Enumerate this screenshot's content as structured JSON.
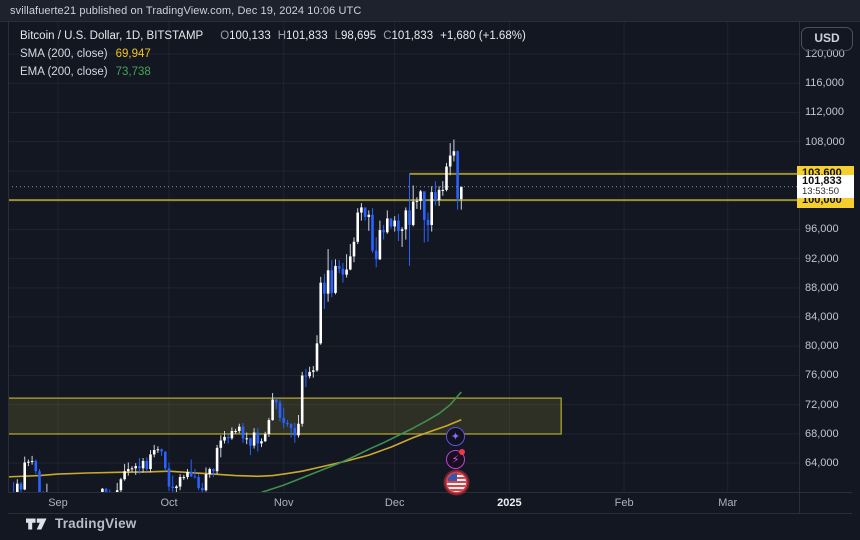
{
  "attribution": {
    "text": "svillafuerte21 published on TradingView.com, Dec 19, 2024 10:06 UTC"
  },
  "legend": {
    "symbol": "Bitcoin / U.S. Dollar, 1D, BITSTAMP",
    "open_label": "O",
    "open": "100,133",
    "high_label": "H",
    "high": "101,833",
    "low_label": "L",
    "low": "98,695",
    "close_label": "C",
    "close": "101,833",
    "change": "+1,680 (+1.68%)",
    "sma_label": "SMA (200, close)",
    "sma_value": "69,947",
    "ema_label": "EMA (200, close)",
    "ema_value": "73,738"
  },
  "price_axis": {
    "currency_button": "USD",
    "level_upper": "103,600",
    "last_price": "101,833",
    "countdown": "13:53:50",
    "level_lower": "100,000"
  },
  "footer": {
    "brand": "TradingView"
  },
  "event_icons": [
    {
      "name": "sparkle-event",
      "glyph": "✦"
    },
    {
      "name": "lightning-event",
      "glyph": "⚡",
      "badge": true
    },
    {
      "name": "us-flag-event"
    }
  ],
  "colors": {
    "background": "#131722",
    "up_candle": "#ffffff",
    "down_candle": "#2962ff",
    "sma_line": "#c9a92c",
    "ema_line": "#3f8f4f",
    "drawing_yellow": "#9a932d",
    "label_yellow_bg": "#f5cf2f",
    "last_price_line": "#8b8f99"
  },
  "chart_data": {
    "type": "candlestick",
    "title": "Bitcoin / U.S. Dollar, 1D, BITSTAMP",
    "price_unit": "USD (values stored in thousands)",
    "x_unit": "days since Sep 1, 2024",
    "start_day": -15,
    "grid": true,
    "ylim_visible": [
      60000,
      124380
    ],
    "y_ticks": [
      120,
      116,
      112,
      108,
      104,
      100,
      96,
      92,
      88,
      84,
      80,
      76,
      72,
      68,
      64
    ],
    "x_ticks": [
      {
        "label": "Sep",
        "d": 0
      },
      {
        "label": "Oct",
        "d": 30
      },
      {
        "label": "Nov",
        "d": 61
      },
      {
        "label": "Dec",
        "d": 91
      },
      {
        "label": "2025",
        "d": 122,
        "emph": true
      },
      {
        "label": "Feb",
        "d": 153
      },
      {
        "label": "Mar",
        "d": 181
      }
    ],
    "candles": [
      [
        60.3,
        60.7,
        58.4,
        59.5
      ],
      [
        59.5,
        60.3,
        58.1,
        58.5
      ],
      [
        58.5,
        59.6,
        57.9,
        59.5
      ],
      [
        59.5,
        61.4,
        58.6,
        59.0
      ],
      [
        59.0,
        61.8,
        58.8,
        61.2
      ],
      [
        61.2,
        61.4,
        59.8,
        60.4
      ],
      [
        60.4,
        64.9,
        60.3,
        64.1
      ],
      [
        64.1,
        64.5,
        63.6,
        64.2
      ],
      [
        64.2,
        65.0,
        63.8,
        64.3
      ],
      [
        64.3,
        64.5,
        62.5,
        62.9
      ],
      [
        62.9,
        63.2,
        58.9,
        59.5
      ],
      [
        59.5,
        60.2,
        57.9,
        59.0
      ],
      [
        59.0,
        61.2,
        58.7,
        59.4
      ],
      [
        59.4,
        59.9,
        57.7,
        59.1
      ],
      [
        59.1,
        59.5,
        58.6,
        58.9
      ],
      [
        58.9,
        59.1,
        57.1,
        57.3
      ],
      [
        57.3,
        59.4,
        57.2,
        59.1
      ],
      [
        59.1,
        59.8,
        57.4,
        57.5
      ],
      [
        57.5,
        58.5,
        55.6,
        58.0
      ],
      [
        58.0,
        58.3,
        55.9,
        56.2
      ],
      [
        56.2,
        57.0,
        52.5,
        53.9
      ],
      [
        53.9,
        54.8,
        53.7,
        54.2
      ],
      [
        54.2,
        55.3,
        53.6,
        54.9
      ],
      [
        54.9,
        58.0,
        54.6,
        57.0
      ],
      [
        57.0,
        58.0,
        56.4,
        57.6
      ],
      [
        57.6,
        58.0,
        55.5,
        57.3
      ],
      [
        57.3,
        58.5,
        57.0,
        58.1
      ],
      [
        58.1,
        60.6,
        57.6,
        60.5
      ],
      [
        60.5,
        60.6,
        59.4,
        60.0
      ],
      [
        60.0,
        60.4,
        58.7,
        59.2
      ],
      [
        59.2,
        59.6,
        57.5,
        58.2
      ],
      [
        58.2,
        61.3,
        57.6,
        60.3
      ],
      [
        60.3,
        62.0,
        59.2,
        61.8
      ],
      [
        61.8,
        63.9,
        61.6,
        62.9
      ],
      [
        62.9,
        64.1,
        62.3,
        63.2
      ],
      [
        63.2,
        63.6,
        62.8,
        63.3
      ],
      [
        63.3,
        64.0,
        62.4,
        63.6
      ],
      [
        63.6,
        64.7,
        62.5,
        63.3
      ],
      [
        63.3,
        64.7,
        62.7,
        64.3
      ],
      [
        64.3,
        64.8,
        62.9,
        63.2
      ],
      [
        63.2,
        65.8,
        62.7,
        65.2
      ],
      [
        65.2,
        66.5,
        64.8,
        65.8
      ],
      [
        65.8,
        66.3,
        65.4,
        65.9
      ],
      [
        65.9,
        66.0,
        65.0,
        65.6
      ],
      [
        65.6,
        65.6,
        62.9,
        63.3
      ],
      [
        63.3,
        64.1,
        60.2,
        60.8
      ],
      [
        60.8,
        62.3,
        60.0,
        60.6
      ],
      [
        60.6,
        61.0,
        59.8,
        60.8
      ],
      [
        60.8,
        62.5,
        60.3,
        62.1
      ],
      [
        62.1,
        62.4,
        61.7,
        62.1
      ],
      [
        62.1,
        63.2,
        61.8,
        62.8
      ],
      [
        62.8,
        64.5,
        62.1,
        62.2
      ],
      [
        62.2,
        63.2,
        61.9,
        62.1
      ],
      [
        62.1,
        62.5,
        60.3,
        60.6
      ],
      [
        60.6,
        61.3,
        58.9,
        60.3
      ],
      [
        60.3,
        63.4,
        60.1,
        62.5
      ],
      [
        62.5,
        63.4,
        62.0,
        63.2
      ],
      [
        63.2,
        63.3,
        62.1,
        62.9
      ],
      [
        62.9,
        66.5,
        62.5,
        66.1
      ],
      [
        66.1,
        67.8,
        64.8,
        67.1
      ],
      [
        67.1,
        68.4,
        66.7,
        67.6
      ],
      [
        67.6,
        67.9,
        66.7,
        67.4
      ],
      [
        67.4,
        68.9,
        67.2,
        68.4
      ],
      [
        68.4,
        68.7,
        68.0,
        68.4
      ],
      [
        68.4,
        69.4,
        68.1,
        69.0
      ],
      [
        69.0,
        69.5,
        66.8,
        67.4
      ],
      [
        67.4,
        68.2,
        66.6,
        67.4
      ],
      [
        67.4,
        67.5,
        65.1,
        66.4
      ],
      [
        66.4,
        68.8,
        66.0,
        68.2
      ],
      [
        68.2,
        68.8,
        65.6,
        66.7
      ],
      [
        66.7,
        67.4,
        66.2,
        67.0
      ],
      [
        67.0,
        68.3,
        66.9,
        68.0
      ],
      [
        68.0,
        70.2,
        67.6,
        69.9
      ],
      [
        69.9,
        73.6,
        69.8,
        72.7
      ],
      [
        72.7,
        72.9,
        71.4,
        72.3
      ],
      [
        72.3,
        72.7,
        69.7,
        70.2
      ],
      [
        70.2,
        71.6,
        68.8,
        69.5
      ],
      [
        69.5,
        69.9,
        69.0,
        69.4
      ],
      [
        69.4,
        69.4,
        67.5,
        68.8
      ],
      [
        68.8,
        69.5,
        66.8,
        67.8
      ],
      [
        67.8,
        70.6,
        67.5,
        69.4
      ],
      [
        69.4,
        76.5,
        69.0,
        76.0
      ],
      [
        76.0,
        76.9,
        74.4,
        75.9
      ],
      [
        75.9,
        77.2,
        75.6,
        76.5
      ],
      [
        76.5,
        77.3,
        75.7,
        76.7
      ],
      [
        76.7,
        81.5,
        76.5,
        80.4
      ],
      [
        80.4,
        89.5,
        80.2,
        88.7
      ],
      [
        88.7,
        89.9,
        85.1,
        87.2
      ],
      [
        87.2,
        93.3,
        86.1,
        90.4
      ],
      [
        90.4,
        91.8,
        86.7,
        87.3
      ],
      [
        87.3,
        91.9,
        87.1,
        91.0
      ],
      [
        91.0,
        91.8,
        90.0,
        90.6
      ],
      [
        90.6,
        91.4,
        88.7,
        89.8
      ],
      [
        89.8,
        92.6,
        89.4,
        90.5
      ],
      [
        90.5,
        94.0,
        90.4,
        92.3
      ],
      [
        92.3,
        94.9,
        91.5,
        94.3
      ],
      [
        94.3,
        98.9,
        94.0,
        98.3
      ],
      [
        98.3,
        99.6,
        97.2,
        99.0
      ],
      [
        99.0,
        99.0,
        97.2,
        97.7
      ],
      [
        97.7,
        98.6,
        95.8,
        98.0
      ],
      [
        98.0,
        98.9,
        92.8,
        93.1
      ],
      [
        93.1,
        94.9,
        90.8,
        91.9
      ],
      [
        91.9,
        97.2,
        91.8,
        95.9
      ],
      [
        95.9,
        96.6,
        94.6,
        95.6
      ],
      [
        95.6,
        98.6,
        95.4,
        97.5
      ],
      [
        97.5,
        97.5,
        96.1,
        96.4
      ],
      [
        96.4,
        97.8,
        95.7,
        97.2
      ],
      [
        97.2,
        98.1,
        94.4,
        95.8
      ],
      [
        95.8,
        96.3,
        93.6,
        96.0
      ],
      [
        96.0,
        99.0,
        94.6,
        98.6
      ],
      [
        98.6,
        103.6,
        91.0,
        96.6
      ],
      [
        96.6,
        102.0,
        96.4,
        99.8
      ],
      [
        99.8,
        100.4,
        98.8,
        99.9
      ],
      [
        99.9,
        101.4,
        98.7,
        101.2
      ],
      [
        101.2,
        101.2,
        94.2,
        97.3
      ],
      [
        97.3,
        98.3,
        94.3,
        96.6
      ],
      [
        96.6,
        101.9,
        95.7,
        101.1
      ],
      [
        101.1,
        102.6,
        99.3,
        100.0
      ],
      [
        100.0,
        101.9,
        99.2,
        101.4
      ],
      [
        101.4,
        102.6,
        100.6,
        101.4
      ],
      [
        101.4,
        105.1,
        101.2,
        104.6
      ],
      [
        104.6,
        107.8,
        103.4,
        106.1
      ],
      [
        106.1,
        108.3,
        105.3,
        106.7
      ],
      [
        106.7,
        106.8,
        98.7,
        100.2
      ],
      [
        100.133,
        101.833,
        98.695,
        101.833
      ]
    ],
    "indicators": [
      {
        "name": "SMA 200",
        "color": "#c9a92c",
        "points": [
          [
            -15,
            62.1
          ],
          [
            -5,
            62.3
          ],
          [
            0,
            62.5
          ],
          [
            8,
            62.65
          ],
          [
            16,
            62.75
          ],
          [
            24,
            62.8
          ],
          [
            30,
            62.9
          ],
          [
            36,
            62.7
          ],
          [
            42,
            62.5
          ],
          [
            48,
            62.3
          ],
          [
            54,
            62.2
          ],
          [
            58,
            62.3
          ],
          [
            61,
            62.5
          ],
          [
            66,
            62.9
          ],
          [
            72,
            63.6
          ],
          [
            78,
            64.3
          ],
          [
            84,
            65.1
          ],
          [
            90,
            66.2
          ],
          [
            96,
            67.5
          ],
          [
            101,
            68.4
          ],
          [
            105,
            69.1
          ],
          [
            109,
            69.947
          ]
        ]
      },
      {
        "name": "EMA 200",
        "color": "#3f8f4f",
        "points": [
          [
            55,
            60.0
          ],
          [
            58,
            60.5
          ],
          [
            61,
            61.0
          ],
          [
            64,
            61.6
          ],
          [
            68,
            62.4
          ],
          [
            72,
            63.2
          ],
          [
            76,
            64.0
          ],
          [
            80,
            64.9
          ],
          [
            84,
            65.9
          ],
          [
            88,
            66.8
          ],
          [
            92,
            67.8
          ],
          [
            96,
            68.8
          ],
          [
            100,
            69.9
          ],
          [
            103,
            70.8
          ],
          [
            106,
            72.0
          ],
          [
            109,
            73.738
          ]
        ]
      }
    ],
    "drawings": {
      "box": {
        "from_day": -20,
        "to_day": 136,
        "top": 72.9,
        "bottom": 68.0
      },
      "levels": [
        {
          "price": 103.6,
          "from_day": 95
        },
        {
          "price": 100.0,
          "from_day": -20
        }
      ],
      "last_price": {
        "value": 101.833,
        "style": "dotted"
      }
    }
  }
}
